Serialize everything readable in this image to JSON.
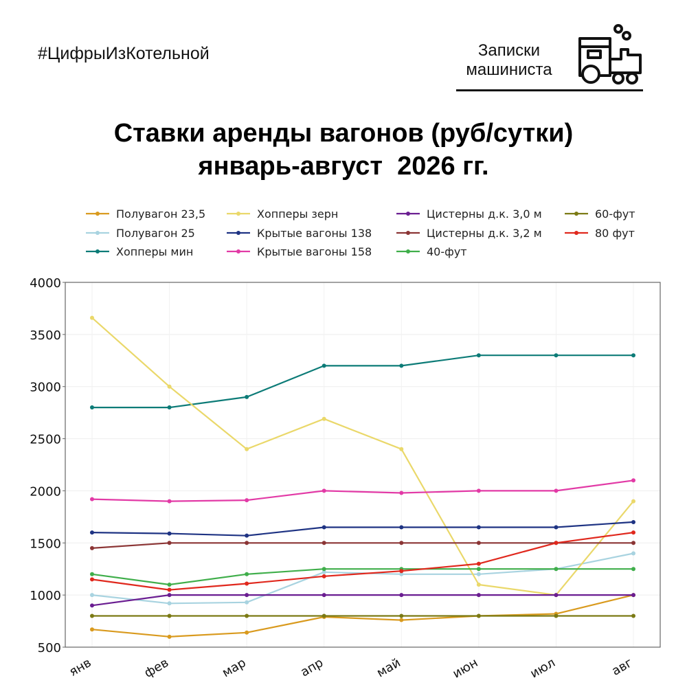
{
  "header": {
    "hashtag": "#ЦифрыИзКотельной",
    "brand_line1": "Записки",
    "brand_line2": "машиниста",
    "brand_icon": "locomotive-icon"
  },
  "title_line1": "Ставки аренды вагонов (руб/сутки)",
  "title_line2": "январь-август  2026 гг.",
  "chart_data": {
    "type": "line",
    "title": "Ставки аренды вагонов (руб/сутки) январь-август 2026 гг.",
    "xlabel": "",
    "ylabel": "",
    "categories": [
      "янв",
      "фев",
      "мар",
      "апр",
      "май",
      "июн",
      "июл",
      "авг"
    ],
    "ylim": [
      500,
      4000
    ],
    "yticks": [
      500,
      1000,
      1500,
      2000,
      2500,
      3000,
      3500,
      4000
    ],
    "grid": true,
    "legend_position": "top",
    "series": [
      {
        "name": "Полувагон 23,5",
        "color": "#d99a1e",
        "values": [
          670,
          600,
          640,
          790,
          760,
          800,
          820,
          1000
        ]
      },
      {
        "name": "Полувагон 25",
        "color": "#a8d3e0",
        "values": [
          1000,
          920,
          930,
          1220,
          1200,
          1200,
          1250,
          1400
        ]
      },
      {
        "name": "Хопперы мин",
        "color": "#0c7b77",
        "values": [
          2800,
          2800,
          2900,
          3200,
          3200,
          3300,
          3300,
          3300
        ]
      },
      {
        "name": "Хопперы зерн",
        "color": "#ead86a",
        "values": [
          3660,
          3000,
          2400,
          2690,
          2400,
          1100,
          1000,
          1900
        ]
      },
      {
        "name": "Крытые вагоны 138",
        "color": "#1e3383",
        "values": [
          1600,
          1590,
          1570,
          1650,
          1650,
          1650,
          1650,
          1700
        ]
      },
      {
        "name": "Крытые вагоны 158",
        "color": "#e23aa6",
        "values": [
          1920,
          1900,
          1910,
          2000,
          1980,
          2000,
          2000,
          2100
        ]
      },
      {
        "name": "Цистерны д.к. 3,0 м",
        "color": "#6a1d91",
        "values": [
          900,
          1000,
          1000,
          1000,
          1000,
          1000,
          1000,
          1000
        ]
      },
      {
        "name": "Цистерны д.к. 3,2 м",
        "color": "#8b3535",
        "values": [
          1450,
          1500,
          1500,
          1500,
          1500,
          1500,
          1500,
          1500
        ]
      },
      {
        "name": "40-фут",
        "color": "#3fae4a",
        "values": [
          1200,
          1100,
          1200,
          1250,
          1250,
          1250,
          1250,
          1250
        ]
      },
      {
        "name": "60-фут",
        "color": "#7b7a14",
        "values": [
          800,
          800,
          800,
          800,
          800,
          800,
          800,
          800
        ]
      },
      {
        "name": "80 фут",
        "color": "#e0281d",
        "values": [
          1150,
          1050,
          1110,
          1180,
          1230,
          1300,
          1500,
          1600
        ]
      }
    ]
  }
}
